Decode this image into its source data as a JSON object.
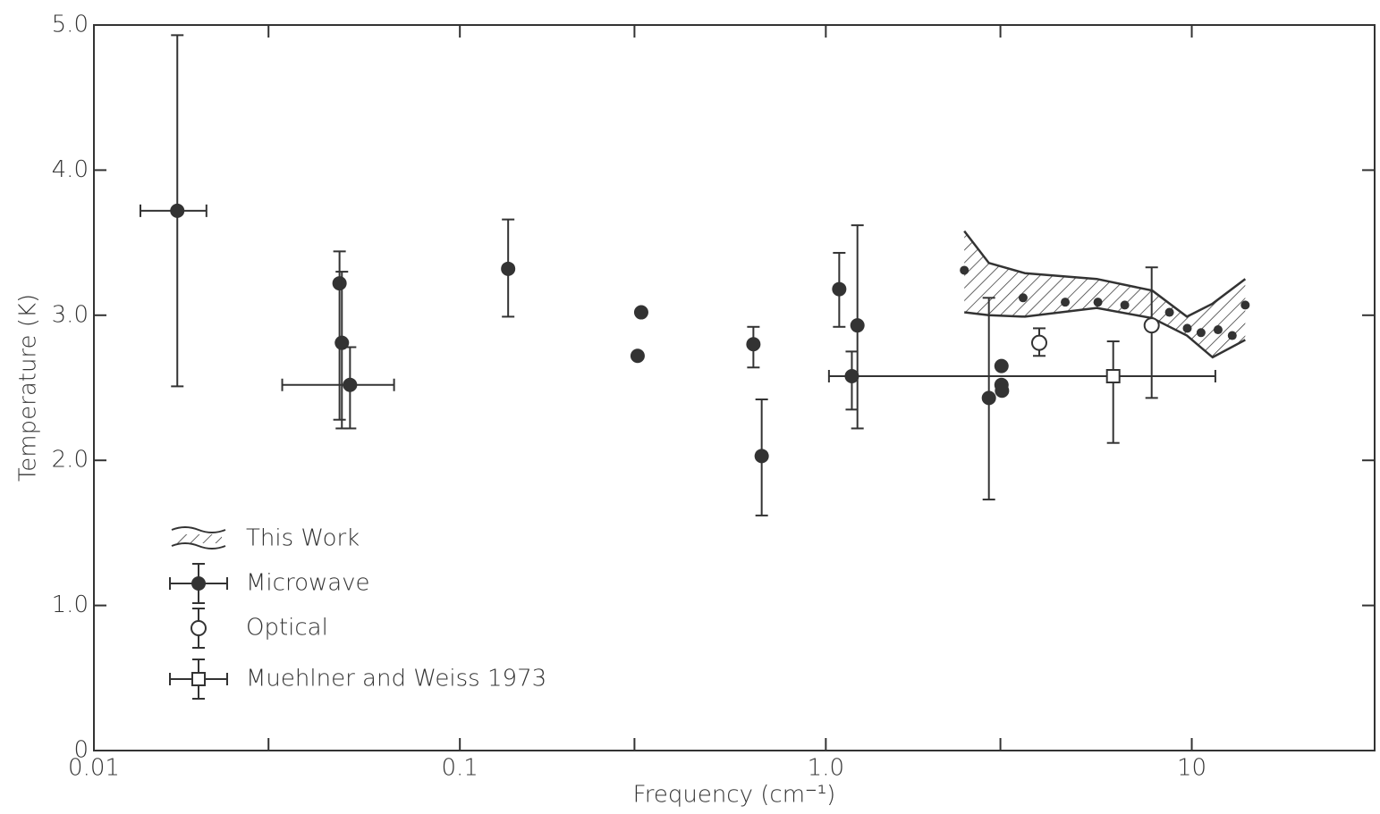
{
  "chart_data": {
    "type": "scatter",
    "x_label": "Frequency (cm⁻¹)",
    "y_label": "Temperature (K)",
    "log_x": true,
    "xlim": [
      0.01,
      31.6
    ],
    "ylim": [
      0,
      5
    ],
    "xticks": [
      0.01,
      0.1,
      {
        "value": 1,
        "label": "1.0"
      },
      10
    ],
    "xminor_ticks": [
      0.03,
      0.3,
      3
    ],
    "yticks": [
      0,
      {
        "value": 1,
        "label": "1.0"
      },
      {
        "value": 2,
        "label": "2.0"
      },
      {
        "value": 3,
        "label": "3.0"
      },
      {
        "value": 4,
        "label": "4.0"
      },
      {
        "value": 5,
        "label": "5.0"
      }
    ],
    "legend": "lower-left",
    "band": {
      "name": "This Work",
      "color": "#333333",
      "x": [
        2.39,
        2.79,
        3.5,
        5.5,
        7.8,
        9.7,
        11.4,
        14.0
      ],
      "upper": [
        3.58,
        3.36,
        3.29,
        3.25,
        3.17,
        2.99,
        3.08,
        3.25
      ],
      "lower": [
        3.02,
        3.0,
        2.99,
        3.05,
        2.98,
        2.86,
        2.71,
        2.83
      ],
      "points": {
        "x": [
          2.39,
          3.46,
          4.51,
          5.54,
          6.56,
          8.69,
          9.72,
          10.6,
          11.8,
          12.9,
          14.0
        ],
        "values": [
          3.31,
          3.12,
          3.09,
          3.09,
          3.07,
          3.02,
          2.91,
          2.88,
          2.9,
          2.86,
          3.07
        ]
      }
    },
    "series": [
      {
        "name": "Microwave",
        "color": "#333333",
        "marker": "filled-circle",
        "x": [
          0.0169,
          0.0469,
          0.0476,
          0.0501,
          0.1355,
          0.306,
          0.313,
          0.634,
          0.668,
          1.088,
          1.178,
          1.22,
          2.79,
          3.02,
          3.02,
          3.03
        ],
        "values": [
          3.72,
          3.22,
          2.81,
          2.52,
          3.32,
          2.72,
          3.02,
          2.8,
          2.03,
          3.18,
          2.58,
          2.93,
          2.43,
          2.65,
          2.52,
          2.48
        ],
        "ylow": [
          2.51,
          2.28,
          2.22,
          2.22,
          2.99,
          null,
          null,
          2.64,
          1.62,
          2.92,
          2.35,
          2.22,
          1.73,
          null,
          null,
          null
        ],
        "yhigh": [
          4.93,
          3.44,
          3.3,
          2.78,
          3.66,
          null,
          null,
          2.92,
          2.42,
          3.43,
          2.75,
          3.62,
          3.12,
          null,
          null,
          null
        ],
        "xlow": [
          0.0134,
          null,
          null,
          0.0327,
          null,
          null,
          null,
          null,
          null,
          null,
          null,
          null,
          null,
          null,
          null,
          null
        ],
        "xhigh": [
          0.0203,
          null,
          null,
          0.0661,
          null,
          null,
          null,
          null,
          null,
          null,
          null,
          null,
          null,
          null,
          null,
          null
        ]
      },
      {
        "name": "Optical",
        "color": "#333333",
        "marker": "open-circle",
        "x": [
          3.83,
          7.77
        ],
        "values": [
          2.81,
          2.93
        ],
        "ylow": [
          2.72,
          2.43
        ],
        "yhigh": [
          2.91,
          3.33
        ],
        "xlow": [
          null,
          null
        ],
        "xhigh": [
          null,
          null
        ]
      },
      {
        "name": "Muehlner and Weiss 1973",
        "color": "#333333",
        "marker": "open-square",
        "x": [
          6.1
        ],
        "values": [
          2.58
        ],
        "ylow": [
          2.12
        ],
        "yhigh": [
          2.82
        ],
        "xlow": [
          1.02
        ],
        "xhigh": [
          11.6
        ]
      }
    ]
  }
}
